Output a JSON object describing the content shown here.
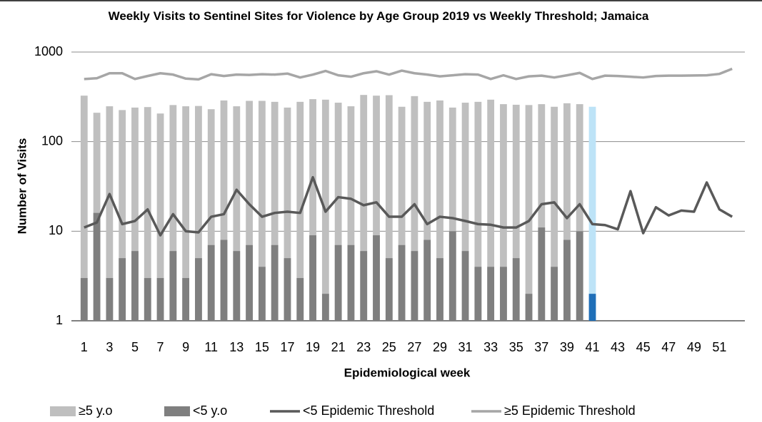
{
  "chart_data": {
    "type": "bar",
    "title": "Weekly Visits to Sentinel Sites for Violence by Age Group 2019 vs Weekly Threshold; Jamaica",
    "x_label": "Epidemiological week",
    "y_label": "Number of Visits",
    "x": [
      1,
      2,
      3,
      4,
      5,
      6,
      7,
      8,
      9,
      10,
      11,
      12,
      13,
      14,
      15,
      16,
      17,
      18,
      19,
      20,
      21,
      22,
      23,
      24,
      25,
      26,
      27,
      28,
      29,
      30,
      31,
      32,
      33,
      34,
      35,
      36,
      37,
      38,
      39,
      40,
      41,
      42,
      43,
      44,
      45,
      46,
      47,
      48,
      49,
      50,
      51,
      52
    ],
    "xlim": [
      0,
      53
    ],
    "xticks": [
      1,
      3,
      5,
      7,
      9,
      11,
      13,
      15,
      17,
      19,
      21,
      23,
      25,
      27,
      29,
      31,
      33,
      35,
      37,
      39,
      41,
      43,
      45,
      47,
      49,
      51
    ],
    "ylim": [
      1,
      1000
    ],
    "yticks": [
      1,
      10,
      100,
      1000
    ],
    "log_scale": true,
    "grid": true,
    "legend": "bottom",
    "series": [
      {
        "name": "≥5 y.o",
        "kind": "bar",
        "color": "#bfbfbf",
        "last_point_color": "#bde3f7",
        "values": [
          326,
          210,
          248,
          225,
          240,
          243,
          206,
          256,
          248,
          250,
          230,
          288,
          248,
          285,
          285,
          278,
          240,
          278,
          298,
          294,
          272,
          248,
          332,
          326,
          330,
          245,
          322,
          278,
          288,
          240,
          272,
          278,
          294,
          262,
          258,
          256,
          262,
          245,
          268,
          262,
          245,
          null,
          null,
          null,
          null,
          null,
          null,
          null,
          null,
          null,
          null,
          null
        ]
      },
      {
        "name": "<5 y.o",
        "kind": "bar",
        "color": "#7f7f7f",
        "last_point_color": "#1f6fb8",
        "values": [
          3,
          16,
          3,
          5,
          6,
          3,
          3,
          6,
          3,
          5,
          7,
          8,
          6,
          7,
          4,
          7,
          5,
          3,
          9,
          2,
          7,
          7,
          6,
          9,
          5,
          7,
          6,
          8,
          5,
          10,
          6,
          4,
          4,
          4,
          5,
          2,
          11,
          4,
          8,
          10,
          2,
          null,
          null,
          null,
          null,
          null,
          null,
          null,
          null,
          null,
          null,
          null
        ]
      },
      {
        "name": "<5 Epidemic Threshold",
        "kind": "line",
        "color": "#595959",
        "values": [
          11,
          12.5,
          26,
          12,
          13,
          17.5,
          9,
          15.5,
          10,
          9.7,
          14.5,
          15.5,
          29,
          20,
          14.5,
          16,
          16.5,
          16,
          40,
          16.5,
          24,
          23,
          19.5,
          21,
          14.5,
          14.5,
          20,
          12,
          14.5,
          14,
          13,
          12,
          11.8,
          11,
          11,
          13,
          20,
          21,
          14,
          20,
          12,
          11.7,
          10.5,
          28,
          9.5,
          18.5,
          15,
          17,
          16.5,
          35,
          17.5,
          14.5
        ]
      },
      {
        "name": "≥5 Epidemic Threshold",
        "kind": "line",
        "color": "#a6a6a6",
        "values": [
          500,
          510,
          580,
          580,
          500,
          540,
          580,
          560,
          505,
          495,
          565,
          540,
          560,
          555,
          565,
          560,
          575,
          520,
          560,
          615,
          550,
          530,
          580,
          610,
          560,
          620,
          580,
          560,
          535,
          550,
          565,
          560,
          500,
          550,
          500,
          535,
          545,
          520,
          550,
          585,
          500,
          545,
          540,
          530,
          520,
          540,
          545,
          545,
          548,
          550,
          570,
          650
        ]
      }
    ]
  }
}
